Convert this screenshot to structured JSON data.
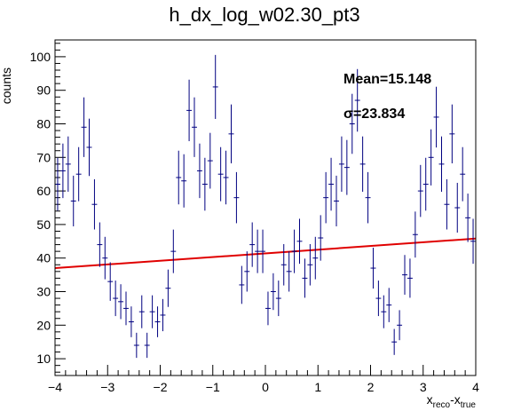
{
  "chart_data": {
    "type": "histogram",
    "title": "h_dx_log_w02.30_pt3",
    "xlabel_main": "x",
    "xlabel_sub1": "reco",
    "xlabel_mid": "-x",
    "xlabel_sub2": "true",
    "ylabel": "counts",
    "xlim": [
      -4,
      4
    ],
    "ylim": [
      5,
      105
    ],
    "x_ticks": [
      -4,
      -3,
      -2,
      -1,
      0,
      1,
      2,
      3,
      4
    ],
    "y_ticks": [
      10,
      20,
      30,
      40,
      50,
      60,
      70,
      80,
      90,
      100
    ],
    "bin_width": 0.1,
    "series": [
      {
        "kind": "data",
        "color": "#000080",
        "points": [
          [
            -3.95,
            62
          ],
          [
            -3.85,
            66
          ],
          [
            -3.75,
            68
          ],
          [
            -3.65,
            57
          ],
          [
            -3.55,
            65
          ],
          [
            -3.45,
            79
          ],
          [
            -3.35,
            73
          ],
          [
            -3.25,
            56
          ],
          [
            -3.15,
            44
          ],
          [
            -3.05,
            40
          ],
          [
            -2.95,
            33
          ],
          [
            -2.85,
            28
          ],
          [
            -2.75,
            27
          ],
          [
            -2.65,
            25
          ],
          [
            -2.55,
            21
          ],
          [
            -2.45,
            14
          ],
          [
            -2.35,
            24
          ],
          [
            -2.25,
            14
          ],
          [
            -2.15,
            24
          ],
          [
            -2.05,
            21
          ],
          [
            -1.95,
            23
          ],
          [
            -1.85,
            31
          ],
          [
            -1.75,
            42
          ],
          [
            -1.65,
            64
          ],
          [
            -1.55,
            63
          ],
          [
            -1.45,
            84
          ],
          [
            -1.35,
            79
          ],
          [
            -1.25,
            66
          ],
          [
            -1.15,
            62
          ],
          [
            -1.05,
            69
          ],
          [
            -0.95,
            91
          ],
          [
            -0.85,
            65
          ],
          [
            -0.75,
            64
          ],
          [
            -0.65,
            77
          ],
          [
            -0.55,
            58
          ],
          [
            -0.45,
            32
          ],
          [
            -0.35,
            36
          ],
          [
            -0.25,
            44
          ],
          [
            -0.15,
            42
          ],
          [
            -0.05,
            42
          ],
          [
            0.05,
            25
          ],
          [
            0.15,
            30
          ],
          [
            0.25,
            28
          ],
          [
            0.35,
            38
          ],
          [
            0.45,
            36
          ],
          [
            0.55,
            42
          ],
          [
            0.65,
            45
          ],
          [
            0.75,
            34
          ],
          [
            0.85,
            38
          ],
          [
            0.95,
            40
          ],
          [
            1.05,
            46
          ],
          [
            1.15,
            58
          ],
          [
            1.25,
            62
          ],
          [
            1.35,
            57
          ],
          [
            1.45,
            68
          ],
          [
            1.55,
            67
          ],
          [
            1.65,
            80
          ],
          [
            1.75,
            87
          ],
          [
            1.85,
            68
          ],
          [
            1.95,
            58
          ],
          [
            2.05,
            37
          ],
          [
            2.15,
            28
          ],
          [
            2.25,
            24
          ],
          [
            2.35,
            26
          ],
          [
            2.45,
            15
          ],
          [
            2.55,
            20
          ],
          [
            2.65,
            35
          ],
          [
            2.75,
            34
          ],
          [
            2.85,
            47
          ],
          [
            2.95,
            60
          ],
          [
            3.05,
            62
          ],
          [
            3.15,
            70
          ],
          [
            3.25,
            82
          ],
          [
            3.35,
            68
          ],
          [
            3.45,
            56
          ],
          [
            3.55,
            77
          ],
          [
            3.65,
            55
          ],
          [
            3.75,
            65
          ],
          [
            3.85,
            52
          ],
          [
            3.95,
            45
          ]
        ]
      },
      {
        "kind": "fit",
        "color": "#e00000",
        "x": [
          -4,
          4
        ],
        "y": [
          37.0,
          45.8
        ]
      }
    ],
    "stats": {
      "mean_label": "Mean=15.148",
      "sigma_label": "σ=23.834"
    }
  }
}
